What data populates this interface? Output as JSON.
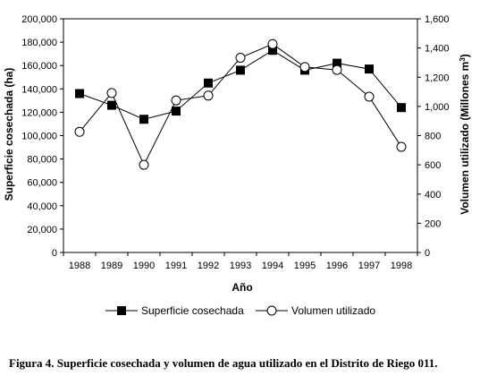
{
  "chart_data": {
    "type": "line",
    "x": [
      "1988",
      "1989",
      "1990",
      "1991",
      "1992",
      "1993",
      "1994",
      "1995",
      "1996",
      "1997",
      "1998"
    ],
    "xlabel": "Año",
    "ylabel_left": "Superficie cosechada (ha)",
    "ylabel_right_main": "Volumen utilizado (Millones m",
    "ylabel_right_sup": "3",
    "ylabel_right_close": ")",
    "ylim_left": [
      0,
      200000
    ],
    "ylim_right": [
      0,
      1600
    ],
    "yticks_left": [
      "0",
      "20,000",
      "40,000",
      "60,000",
      "80,000",
      "100,000",
      "120,000",
      "140,000",
      "160,000",
      "180,000",
      "200,000"
    ],
    "yticks_right": [
      "0",
      "200",
      "400",
      "600",
      "800",
      "1,000",
      "1,200",
      "1,400",
      "1,600"
    ],
    "grid": false,
    "legend_position": "bottom",
    "series": [
      {
        "name": "Superficie cosechada",
        "axis": "left",
        "marker": "filled-square",
        "line": "solid",
        "values": [
          136000,
          126000,
          114000,
          121000,
          145000,
          156000,
          173000,
          156000,
          162000,
          157000,
          124000
        ]
      },
      {
        "name": "Volumen utilizado",
        "axis": "right",
        "marker": "open-circle",
        "line": "solid",
        "values": [
          826,
          1092,
          600,
          1041,
          1074,
          1333,
          1427,
          1270,
          1250,
          1067,
          723
        ]
      }
    ]
  },
  "caption": "Figura 4. Superficie cosechada y volumen de agua utilizado en el Distrito de Riego 011."
}
